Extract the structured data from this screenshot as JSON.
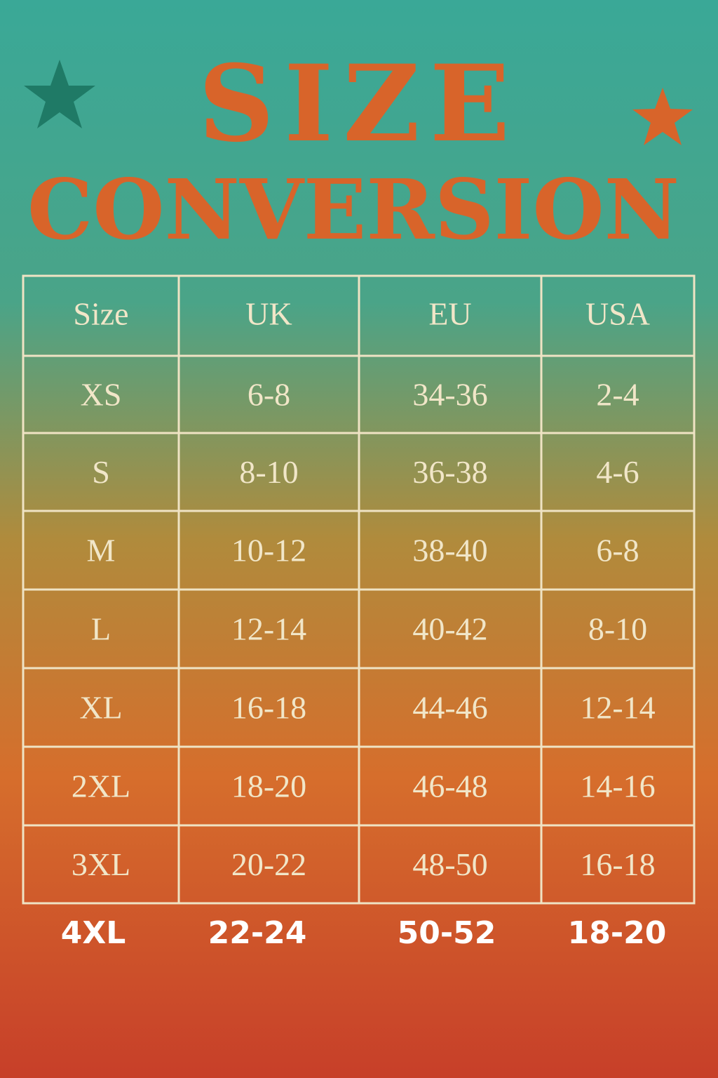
{
  "header": {
    "title": [
      "SIZE",
      "CONVERSION"
    ]
  },
  "table": {
    "columns": [
      "Size",
      "UK",
      "EU",
      "USA"
    ],
    "rows": [
      [
        "XS",
        "6-8",
        "34-36",
        "2-4"
      ],
      [
        "S",
        "8-10",
        "36-38",
        "4-6"
      ],
      [
        "M",
        "10-12",
        "38-40",
        "6-8"
      ],
      [
        "L",
        "12-14",
        "40-42",
        "8-10"
      ],
      [
        "XL",
        "16-18",
        "44-46",
        "12-14"
      ],
      [
        "2XL",
        "18-20",
        "46-48",
        "14-16"
      ],
      [
        "3XL",
        "20-22",
        "48-50",
        "16-18"
      ]
    ],
    "extra_row": [
      "4XL",
      "22-24",
      "50-52",
      "18-20"
    ]
  }
}
